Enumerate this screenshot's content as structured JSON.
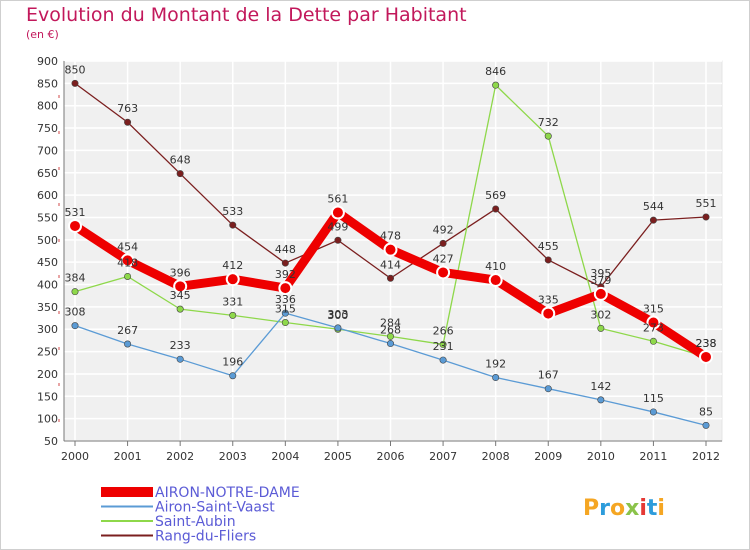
{
  "chart_data": {
    "type": "line",
    "title": "Evolution du Montant de la Dette par Habitant",
    "subtitle": "(en €)",
    "categories": [
      "2000",
      "2001",
      "2002",
      "2003",
      "2004",
      "2005",
      "2006",
      "2007",
      "2008",
      "2009",
      "2010",
      "2011",
      "2012"
    ],
    "ylim": [
      50,
      900
    ],
    "yticks": [
      50,
      100,
      150,
      200,
      250,
      300,
      350,
      400,
      450,
      500,
      550,
      600,
      650,
      700,
      750,
      800,
      850,
      900
    ],
    "grid": true,
    "legend_position": "bottom-left",
    "series": [
      {
        "name": "AIRON-NOTRE-DAME",
        "color": "#ee0000",
        "values": [
          531,
          454,
          396,
          412,
          392,
          561,
          478,
          427,
          410,
          335,
          379,
          315,
          238
        ]
      },
      {
        "name": "Airon-Saint-Vaast",
        "color": "#5b9bd5",
        "values": [
          308,
          267,
          233,
          196,
          336,
          303,
          268,
          231,
          192,
          167,
          142,
          115,
          85
        ]
      },
      {
        "name": "Saint-Aubin",
        "color": "#8ed84a",
        "values": [
          384,
          418,
          345,
          331,
          315,
          300,
          284,
          266,
          846,
          732,
          302,
          273,
          238
        ]
      },
      {
        "name": "Rang-du-Fliers",
        "color": "#7b1f1f",
        "values": [
          850,
          763,
          648,
          533,
          448,
          499,
          414,
          492,
          569,
          455,
          395,
          544,
          551
        ]
      }
    ]
  },
  "logo": {
    "text": "Proxiti"
  }
}
